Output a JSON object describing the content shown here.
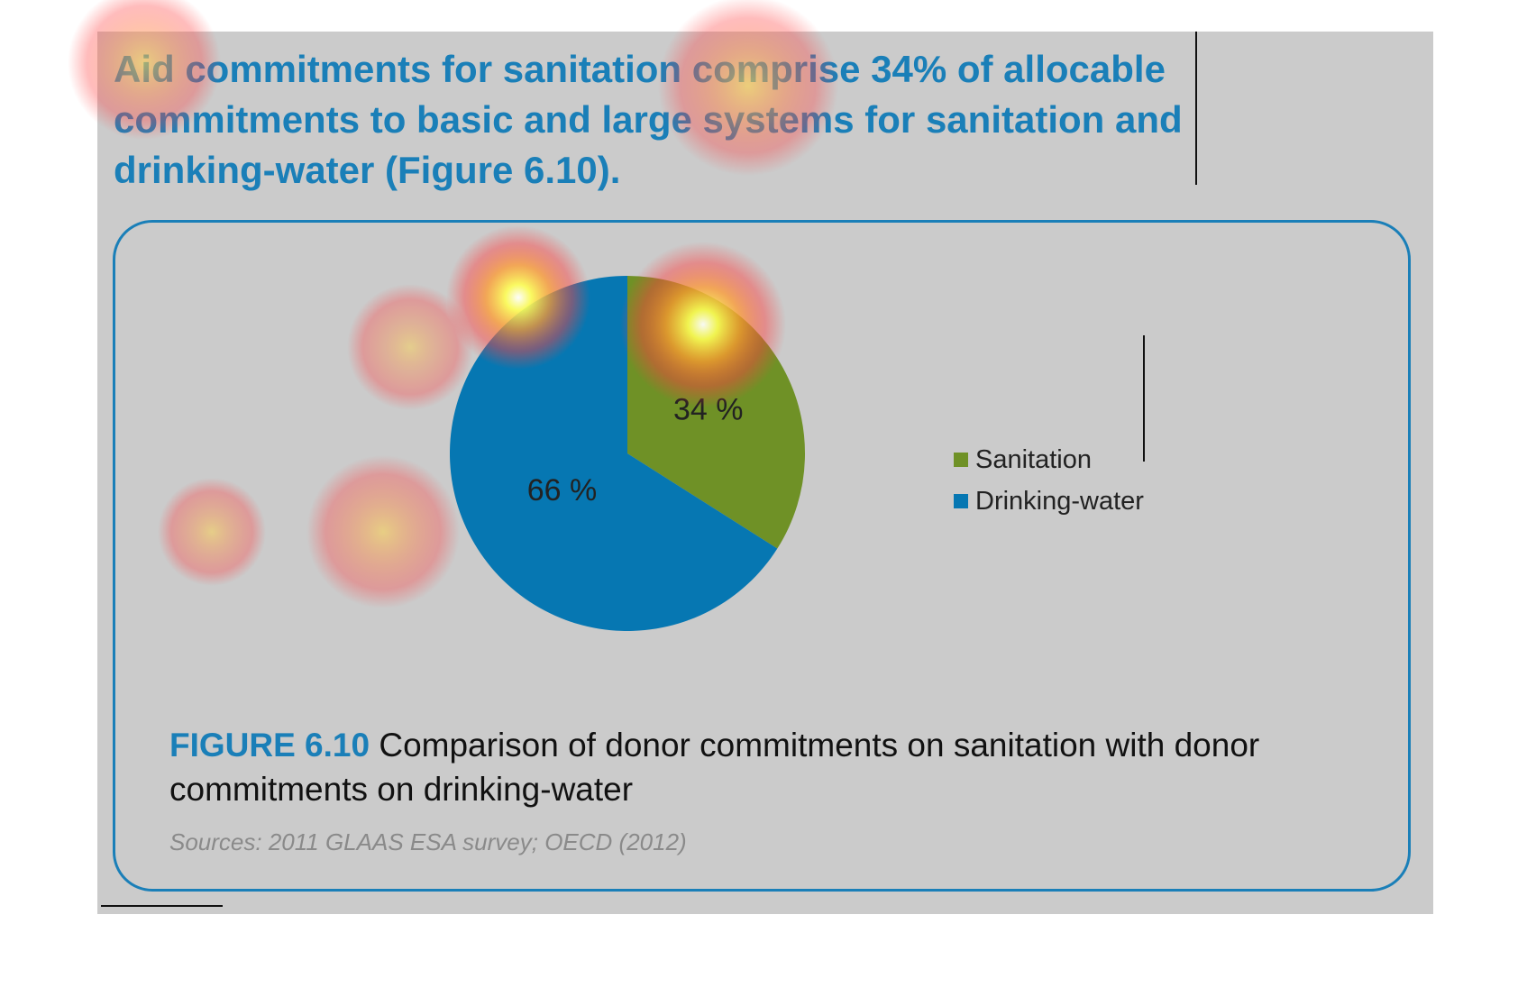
{
  "headline": "Aid commitments for sanitation comprise 34% of allocable commitments to basic and large systems for sanitation and drinking-water (Figure 6.10).",
  "caption": {
    "label": "FIGURE 6.10",
    "text": " Comparison of donor commitments on sanitation with donor commitments on drinking-water"
  },
  "sources": "Sources: 2011 GLAAS ESA survey; OECD (2012)",
  "colors": {
    "panel_background": "#cbcbcb",
    "accent_blue": "#1a7fb8",
    "sanitation": "#6f9126",
    "drinking_water": "#0677b2"
  },
  "chart_data": {
    "type": "pie",
    "title": "",
    "series": [
      {
        "name": "Sanitation",
        "value": 34,
        "label": "34 %",
        "color": "#6f9126"
      },
      {
        "name": "Drinking-water",
        "value": 66,
        "label": "66 %",
        "color": "#0677b2"
      }
    ],
    "start_angle_deg": 0,
    "direction": "clockwise",
    "legend_position": "right"
  },
  "heatmap_overlay": {
    "description_hidden": true,
    "hotspots": [
      {
        "intensity": 1.0
      },
      {
        "intensity": 0.85
      },
      {
        "intensity": 0.6
      },
      {
        "intensity": 0.55
      },
      {
        "intensity": 0.5
      },
      {
        "intensity": 0.45
      },
      {
        "intensity": 0.4
      }
    ]
  }
}
